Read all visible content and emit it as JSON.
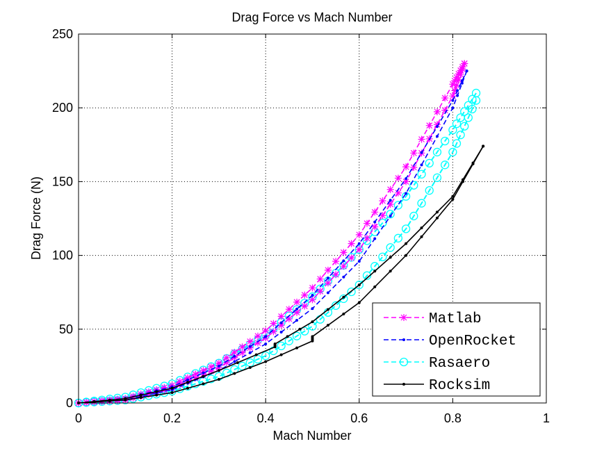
{
  "chart_data": {
    "type": "line",
    "title": "Drag Force vs Mach Number",
    "xlabel": "Mach Number",
    "ylabel": "Drag Force (N)",
    "xlim": [
      0,
      1
    ],
    "ylim": [
      0,
      250
    ],
    "xticks": [
      0,
      0.2,
      0.4,
      0.6,
      0.8,
      1
    ],
    "xtick_labels": [
      "0",
      "0.2",
      "0.4",
      "0.6",
      "0.8",
      "1"
    ],
    "yticks": [
      0,
      50,
      100,
      150,
      200,
      250
    ],
    "ytick_labels": [
      "0",
      "50",
      "100",
      "150",
      "200",
      "250"
    ],
    "grid": true,
    "legend_position": "bottom-right",
    "series": [
      {
        "name": "Matlab",
        "color": "#ff00ff",
        "marker": "star",
        "linestyle": "dashed",
        "ascent": {
          "x": [
            0,
            0.1,
            0.2,
            0.3,
            0.4,
            0.5,
            0.6,
            0.7,
            0.8,
            0.825
          ],
          "y": [
            0,
            3,
            12,
            27,
            49,
            78,
            114,
            160,
            216,
            230
          ]
        },
        "descent": {
          "x": [
            0.825,
            0.8,
            0.7,
            0.6,
            0.5,
            0.4,
            0.3,
            0.2,
            0.1,
            0
          ],
          "y": [
            230,
            208,
            150,
            104,
            70,
            44,
            24,
            10,
            2,
            0
          ]
        }
      },
      {
        "name": "OpenRocket",
        "color": "#0000ff",
        "marker": "dot",
        "linestyle": "dashed",
        "ascent": {
          "x": [
            0,
            0.1,
            0.2,
            0.3,
            0.4,
            0.5,
            0.6,
            0.7,
            0.8,
            0.83
          ],
          "y": [
            0,
            3,
            11,
            25,
            45,
            73,
            108,
            152,
            205,
            225
          ]
        },
        "descent": {
          "x": [
            0.83,
            0.8,
            0.7,
            0.6,
            0.5,
            0.4,
            0.3,
            0.2,
            0.1,
            0
          ],
          "y": [
            225,
            200,
            142,
            96,
            64,
            40,
            22,
            9,
            2,
            0
          ]
        }
      },
      {
        "name": "Rasaero",
        "color": "#00ffff",
        "marker": "circle",
        "linestyle": "dashed",
        "ascent": {
          "x": [
            0,
            0.1,
            0.2,
            0.3,
            0.4,
            0.5,
            0.6,
            0.7,
            0.8,
            0.85
          ],
          "y": [
            0,
            4,
            13,
            27,
            46,
            72,
            104,
            140,
            185,
            210
          ]
        },
        "descent": {
          "x": [
            0.85,
            0.8,
            0.7,
            0.6,
            0.5,
            0.4,
            0.3,
            0.2,
            0.1,
            0
          ],
          "y": [
            205,
            170,
            118,
            80,
            52,
            32,
            18,
            8,
            2,
            0
          ]
        }
      },
      {
        "name": "Rocksim",
        "color": "#000000",
        "marker": "dot",
        "linestyle": "solid",
        "ascent": {
          "x": [
            0,
            0.1,
            0.2,
            0.3,
            0.42,
            0.42,
            0.5,
            0.6,
            0.7,
            0.8,
            0.865
          ],
          "y": [
            0,
            3,
            10,
            22,
            38,
            40,
            55,
            80,
            108,
            140,
            174
          ]
        },
        "descent": {
          "x": [
            0.865,
            0.8,
            0.7,
            0.6,
            0.5,
            0.5,
            0.4,
            0.3,
            0.2,
            0.1,
            0
          ],
          "y": [
            174,
            138,
            100,
            68,
            45,
            42,
            28,
            16,
            7,
            2,
            0
          ]
        }
      }
    ]
  }
}
